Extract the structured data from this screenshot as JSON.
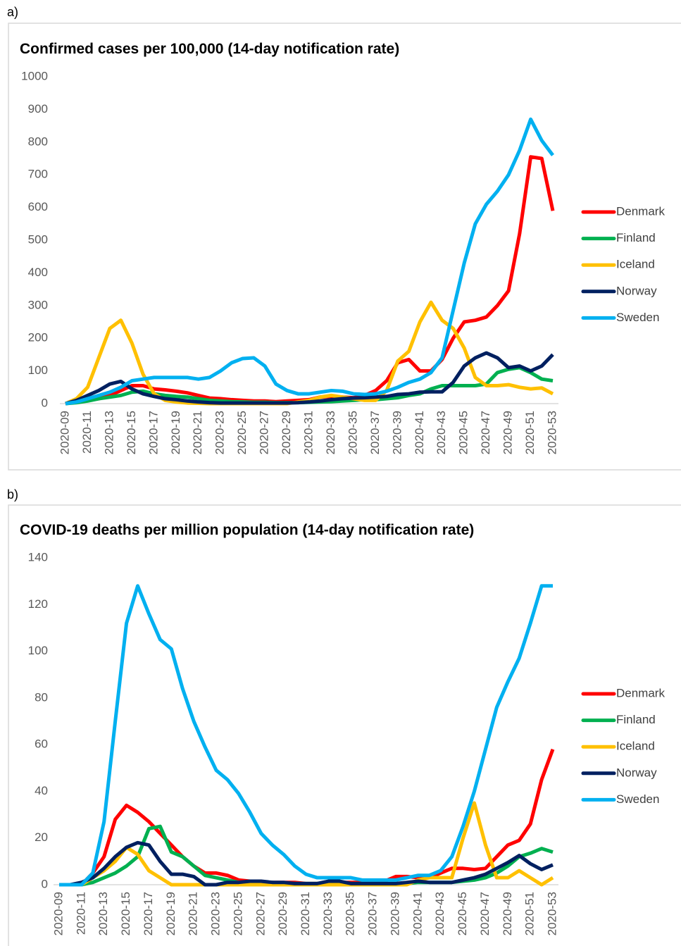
{
  "chart_data": [
    {
      "type": "line",
      "panel_label": "a)",
      "title": "Confirmed cases per 100,000 (14-day notification rate)",
      "categories": [
        "2020-09",
        null,
        "2020-11",
        null,
        "2020-13",
        null,
        "2020-15",
        null,
        "2020-17",
        null,
        "2020-19",
        null,
        "2020-21",
        null,
        "2020-23",
        null,
        "2020-25",
        null,
        "2020-27",
        null,
        "2020-29",
        null,
        "2020-31",
        null,
        "2020-33",
        null,
        "2020-35",
        null,
        "2020-37",
        null,
        "2020-39",
        null,
        "2020-41",
        null,
        "2020-43",
        null,
        "2020-45",
        null,
        "2020-47",
        null,
        "2020-49",
        null,
        "2020-51",
        null,
        "2020-53"
      ],
      "ylim": [
        0,
        1000
      ],
      "yticks": [
        0,
        100,
        200,
        300,
        400,
        500,
        600,
        700,
        800,
        900,
        1000
      ],
      "grid": false,
      "series": [
        {
          "name": "Denmark",
          "color": "#ff0000",
          "values": [
            0,
            5,
            10,
            15,
            25,
            40,
            55,
            55,
            45,
            42,
            38,
            33,
            25,
            17,
            15,
            12,
            10,
            8,
            8,
            6,
            8,
            10,
            12,
            20,
            22,
            20,
            18,
            25,
            40,
            70,
            125,
            135,
            100,
            100,
            135,
            200,
            250,
            255,
            265,
            300,
            345,
            520,
            755,
            750,
            590
          ]
        },
        {
          "name": "Finland",
          "color": "#00b050",
          "values": [
            0,
            3,
            8,
            15,
            20,
            25,
            35,
            38,
            30,
            25,
            22,
            20,
            15,
            10,
            8,
            6,
            5,
            4,
            4,
            3,
            3,
            3,
            4,
            5,
            6,
            8,
            10,
            12,
            12,
            15,
            18,
            25,
            30,
            45,
            55,
            55,
            55,
            55,
            60,
            95,
            105,
            110,
            95,
            75,
            70
          ]
        },
        {
          "name": "Iceland",
          "color": "#ffc000",
          "values": [
            0,
            15,
            50,
            140,
            230,
            255,
            185,
            90,
            30,
            10,
            5,
            2,
            1,
            0,
            0,
            0,
            0,
            0,
            0,
            0,
            0,
            5,
            10,
            20,
            25,
            20,
            15,
            10,
            10,
            40,
            130,
            160,
            250,
            310,
            255,
            230,
            170,
            80,
            55,
            55,
            58,
            50,
            45,
            48,
            30
          ]
        },
        {
          "name": "Norway",
          "color": "#002060",
          "values": [
            0,
            10,
            25,
            40,
            60,
            68,
            45,
            30,
            22,
            15,
            12,
            8,
            5,
            3,
            2,
            2,
            2,
            2,
            2,
            2,
            2,
            3,
            5,
            8,
            12,
            15,
            17,
            18,
            20,
            22,
            28,
            30,
            35,
            36,
            36,
            65,
            115,
            140,
            155,
            140,
            110,
            115,
            100,
            115,
            150
          ]
        },
        {
          "name": "Sweden",
          "color": "#00b0f0",
          "values": [
            0,
            5,
            15,
            25,
            35,
            50,
            70,
            75,
            80,
            80,
            80,
            80,
            75,
            80,
            100,
            125,
            138,
            140,
            115,
            60,
            40,
            30,
            30,
            35,
            40,
            38,
            30,
            28,
            30,
            38,
            50,
            65,
            75,
            95,
            140,
            285,
            430,
            550,
            610,
            650,
            700,
            775,
            870,
            805,
            760
          ]
        }
      ]
    },
    {
      "type": "line",
      "panel_label": "b)",
      "title": "COVID-19 deaths per million population  (14-day notification rate)",
      "categories": [
        "2020-09",
        null,
        "2020-11",
        null,
        "2020-13",
        null,
        "2020-15",
        null,
        "2020-17",
        null,
        "2020-19",
        null,
        "2020-21",
        null,
        "2020-23",
        null,
        "2020-25",
        null,
        "2020-27",
        null,
        "2020-29",
        null,
        "2020-31",
        null,
        "2020-33",
        null,
        "2020-35",
        null,
        "2020-37",
        null,
        "2020-39",
        null,
        "2020-41",
        null,
        "2020-43",
        null,
        "2020-45",
        null,
        "2020-47",
        null,
        "2020-49",
        null,
        "2020-51",
        null,
        "2020-53"
      ],
      "ylim": [
        0,
        140
      ],
      "yticks": [
        0,
        20,
        40,
        60,
        80,
        100,
        120,
        140
      ],
      "grid": false,
      "series": [
        {
          "name": "Denmark",
          "color": "#ff0000",
          "values": [
            0,
            0,
            0,
            5,
            12,
            28,
            34,
            31,
            27,
            22,
            17,
            12,
            8,
            5,
            5,
            4,
            2,
            1.5,
            1,
            1,
            1,
            1,
            0.5,
            0.5,
            0.5,
            1,
            1,
            1,
            1,
            1.5,
            3.5,
            3.5,
            3,
            3,
            5,
            7,
            7,
            6.5,
            7,
            12,
            17,
            19,
            26,
            45,
            58
          ]
        },
        {
          "name": "Finland",
          "color": "#00b050",
          "values": [
            0,
            0,
            0,
            1,
            3,
            5,
            8,
            12,
            24,
            25,
            14,
            12,
            8,
            4,
            3,
            2,
            1,
            1,
            1,
            1,
            0.5,
            0.5,
            0.5,
            0.5,
            0.5,
            0.5,
            0.5,
            0.5,
            0.5,
            0.5,
            0.5,
            0.5,
            1,
            1,
            1,
            1,
            1.5,
            2,
            3,
            5,
            8,
            12,
            13.5,
            15.5,
            14
          ]
        },
        {
          "name": "Iceland",
          "color": "#ffc000",
          "values": [
            0,
            0,
            0,
            3,
            6,
            10,
            16,
            13,
            6,
            3,
            0,
            0,
            0,
            0,
            0,
            0,
            0,
            0,
            0,
            0,
            0,
            0,
            0,
            0,
            0,
            0,
            0,
            0,
            0,
            0,
            0,
            0,
            2,
            3,
            3,
            3,
            20,
            35,
            17,
            3,
            3,
            6,
            3,
            0,
            3
          ]
        },
        {
          "name": "Norway",
          "color": "#002060",
          "values": [
            0,
            0,
            1,
            3,
            7,
            12,
            16,
            18,
            17,
            10,
            4.5,
            4.5,
            3.5,
            0,
            0,
            1,
            1,
            1.5,
            1.5,
            1,
            1,
            0.5,
            0.5,
            0.5,
            1.5,
            1.5,
            0.5,
            0.5,
            0.5,
            0.5,
            0.5,
            1,
            1.5,
            1,
            1,
            1,
            2,
            3,
            4.5,
            7,
            9.5,
            12.5,
            9,
            6.5,
            8.5
          ]
        },
        {
          "name": "Sweden",
          "color": "#00b0f0",
          "values": [
            0,
            0,
            0,
            5,
            27,
            70,
            112,
            128,
            116,
            105,
            101,
            84,
            70,
            59,
            49,
            45,
            39,
            31,
            22,
            17,
            13,
            8,
            4.5,
            3,
            3,
            3,
            3,
            2,
            2,
            2,
            2,
            3,
            4,
            4,
            6,
            12,
            25,
            40,
            58,
            76,
            87,
            97,
            112,
            128,
            128
          ]
        }
      ]
    }
  ]
}
